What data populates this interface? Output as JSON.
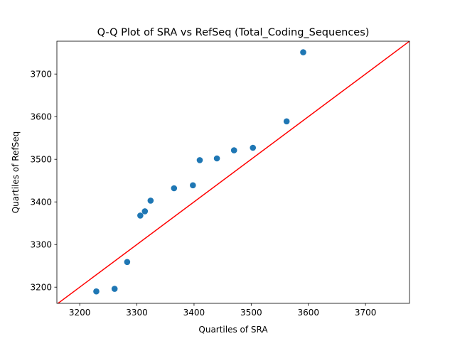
{
  "chart_data": {
    "type": "scatter",
    "title": "Q-Q Plot of SRA vs RefSeq (Total_Coding_Sequences)",
    "xlabel": "Quartiles of SRA",
    "ylabel": "Quartiles of RefSeq",
    "xlim": [
      3160,
      3777
    ],
    "ylim": [
      3162,
      3777
    ],
    "xticks": [
      3200,
      3300,
      3400,
      3500,
      3600,
      3700
    ],
    "yticks": [
      3200,
      3300,
      3400,
      3500,
      3600,
      3700
    ],
    "grid": false,
    "legend": "none",
    "point_color": "#1f77b4",
    "series": [
      {
        "x": [
          3229,
          3261,
          3283,
          3306,
          3314,
          3324,
          3365,
          3398,
          3410,
          3440,
          3470,
          3503,
          3562,
          3591
        ],
        "y": [
          3190,
          3196,
          3259,
          3368,
          3378,
          3403,
          3432,
          3439,
          3498,
          3502,
          3521,
          3527,
          3589,
          3751
        ]
      }
    ],
    "reference_line": {
      "type": "identity",
      "label": "",
      "color": "#ff0000"
    }
  }
}
